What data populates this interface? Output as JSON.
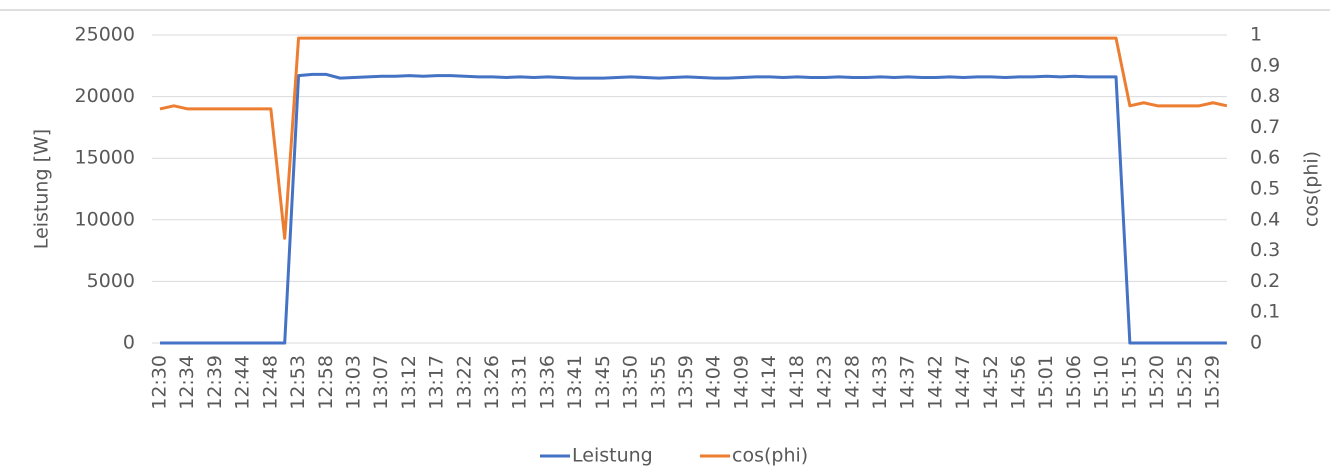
{
  "chart_data": {
    "type": "line",
    "categories": [
      "12:30",
      null,
      "12:34",
      null,
      "12:39",
      null,
      "12:44",
      null,
      "12:48",
      null,
      "12:53",
      null,
      "12:58",
      null,
      "13:03",
      null,
      "13:07",
      null,
      "13:12",
      null,
      "13:17",
      null,
      "13:22",
      null,
      "13:26",
      null,
      "13:31",
      null,
      "13:36",
      null,
      "13:41",
      null,
      "13:45",
      null,
      "13:50",
      null,
      "13:55",
      null,
      "13:59",
      null,
      "14:04",
      null,
      "14:09",
      null,
      "14:14",
      null,
      "14:18",
      null,
      "14:23",
      null,
      "14:28",
      null,
      "14:33",
      null,
      "14:37",
      null,
      "14:42",
      null,
      "14:47",
      null,
      "14:52",
      null,
      "14:56",
      null,
      "15:01",
      null,
      "15:06",
      null,
      "15:10",
      null,
      "15:15",
      null,
      "15:20",
      null,
      "15:25",
      null,
      "15:29",
      null
    ],
    "series": [
      {
        "name": "Leistung",
        "color": "#4472c4",
        "axis": "y",
        "values": [
          0,
          0,
          0,
          0,
          0,
          0,
          0,
          0,
          0,
          0,
          21700,
          21800,
          21800,
          21500,
          21550,
          21600,
          21650,
          21650,
          21700,
          21650,
          21700,
          21700,
          21650,
          21600,
          21600,
          21550,
          21600,
          21550,
          21600,
          21550,
          21500,
          21500,
          21500,
          21550,
          21600,
          21550,
          21500,
          21550,
          21600,
          21550,
          21500,
          21500,
          21550,
          21600,
          21600,
          21550,
          21600,
          21550,
          21550,
          21600,
          21550,
          21550,
          21600,
          21550,
          21600,
          21550,
          21550,
          21600,
          21550,
          21600,
          21600,
          21550,
          21600,
          21600,
          21650,
          21600,
          21650,
          21600,
          21600,
          21600,
          0,
          0,
          0,
          0,
          0,
          0,
          0,
          0
        ]
      },
      {
        "name": "cos(phi)",
        "color": "#ed7d31",
        "axis": "y2",
        "values": [
          0.76,
          0.77,
          0.76,
          0.76,
          0.76,
          0.76,
          0.76,
          0.76,
          0.76,
          0.34,
          0.99,
          0.99,
          0.99,
          0.99,
          0.99,
          0.99,
          0.99,
          0.99,
          0.99,
          0.99,
          0.99,
          0.99,
          0.99,
          0.99,
          0.99,
          0.99,
          0.99,
          0.99,
          0.99,
          0.99,
          0.99,
          0.99,
          0.99,
          0.99,
          0.99,
          0.99,
          0.99,
          0.99,
          0.99,
          0.99,
          0.99,
          0.99,
          0.99,
          0.99,
          0.99,
          0.99,
          0.99,
          0.99,
          0.99,
          0.99,
          0.99,
          0.99,
          0.99,
          0.99,
          0.99,
          0.99,
          0.99,
          0.99,
          0.99,
          0.99,
          0.99,
          0.99,
          0.99,
          0.99,
          0.99,
          0.99,
          0.99,
          0.99,
          0.99,
          0.99,
          0.77,
          0.78,
          0.77,
          0.77,
          0.77,
          0.77,
          0.78,
          0.77
        ]
      }
    ],
    "y_label": "Leistung [W]",
    "y2_label": "cos(phi)",
    "ylim": [
      0,
      25000
    ],
    "yticks": [
      0,
      5000,
      10000,
      15000,
      20000,
      25000
    ],
    "y2lim": [
      0,
      1
    ],
    "y2ticks": [
      0,
      0.1,
      0.2,
      0.3,
      0.4,
      0.5,
      0.6,
      0.7,
      0.8,
      0.9,
      1
    ],
    "grid": true,
    "legend": "bottom"
  }
}
